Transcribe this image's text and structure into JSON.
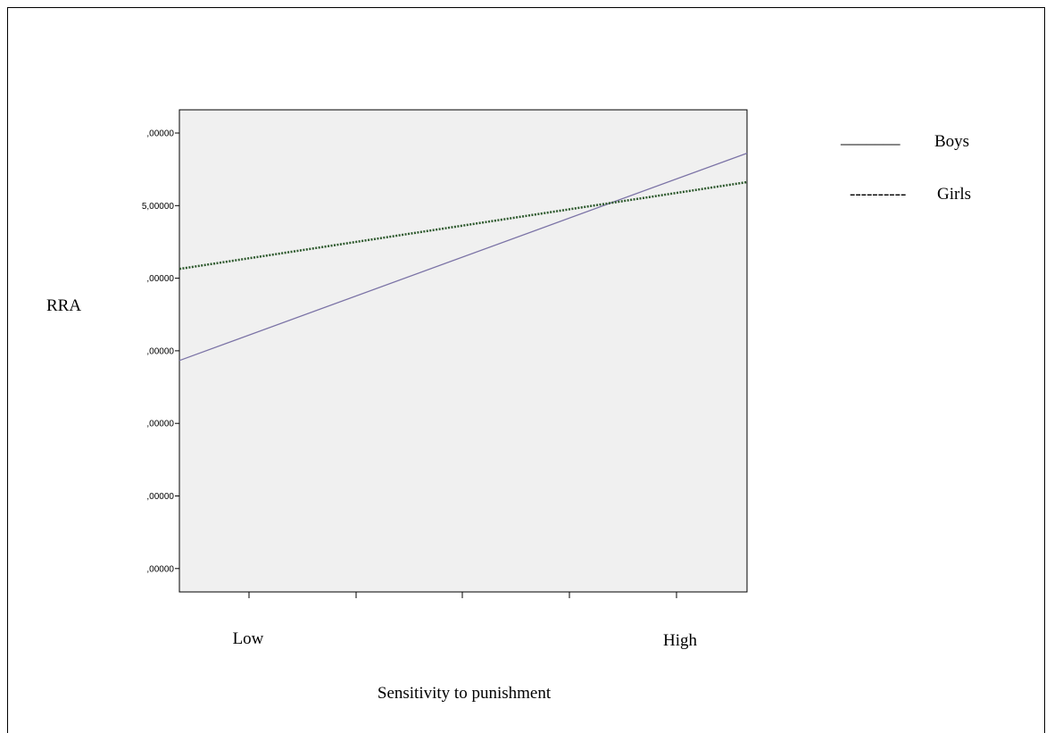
{
  "chart_data": {
    "type": "line",
    "title": "",
    "xlabel": "Sensitivity to punishment",
    "ylabel": "RRA",
    "x_tick_labels": [
      "Low",
      "High"
    ],
    "y_tick_labels": [
      ",00000",
      "5,00000",
      ",00000",
      ",00000",
      ",00000",
      ",00000",
      ",00000"
    ],
    "legend_position": "top-right",
    "grid": false,
    "background": "#f0f0f0",
    "series": [
      {
        "name": "Boys",
        "style": "solid",
        "color": "#7b73a6",
        "y_start": 0.48,
        "y_end": 0.91
      },
      {
        "name": "Girls",
        "style": "dotted",
        "color": "#2e5a2e",
        "y_start": 0.67,
        "y_end": 0.85
      }
    ]
  },
  "legend": {
    "boys_sample": "_______",
    "boys_label": "Boys",
    "girls_sample": "----------",
    "girls_label": "Girls"
  }
}
